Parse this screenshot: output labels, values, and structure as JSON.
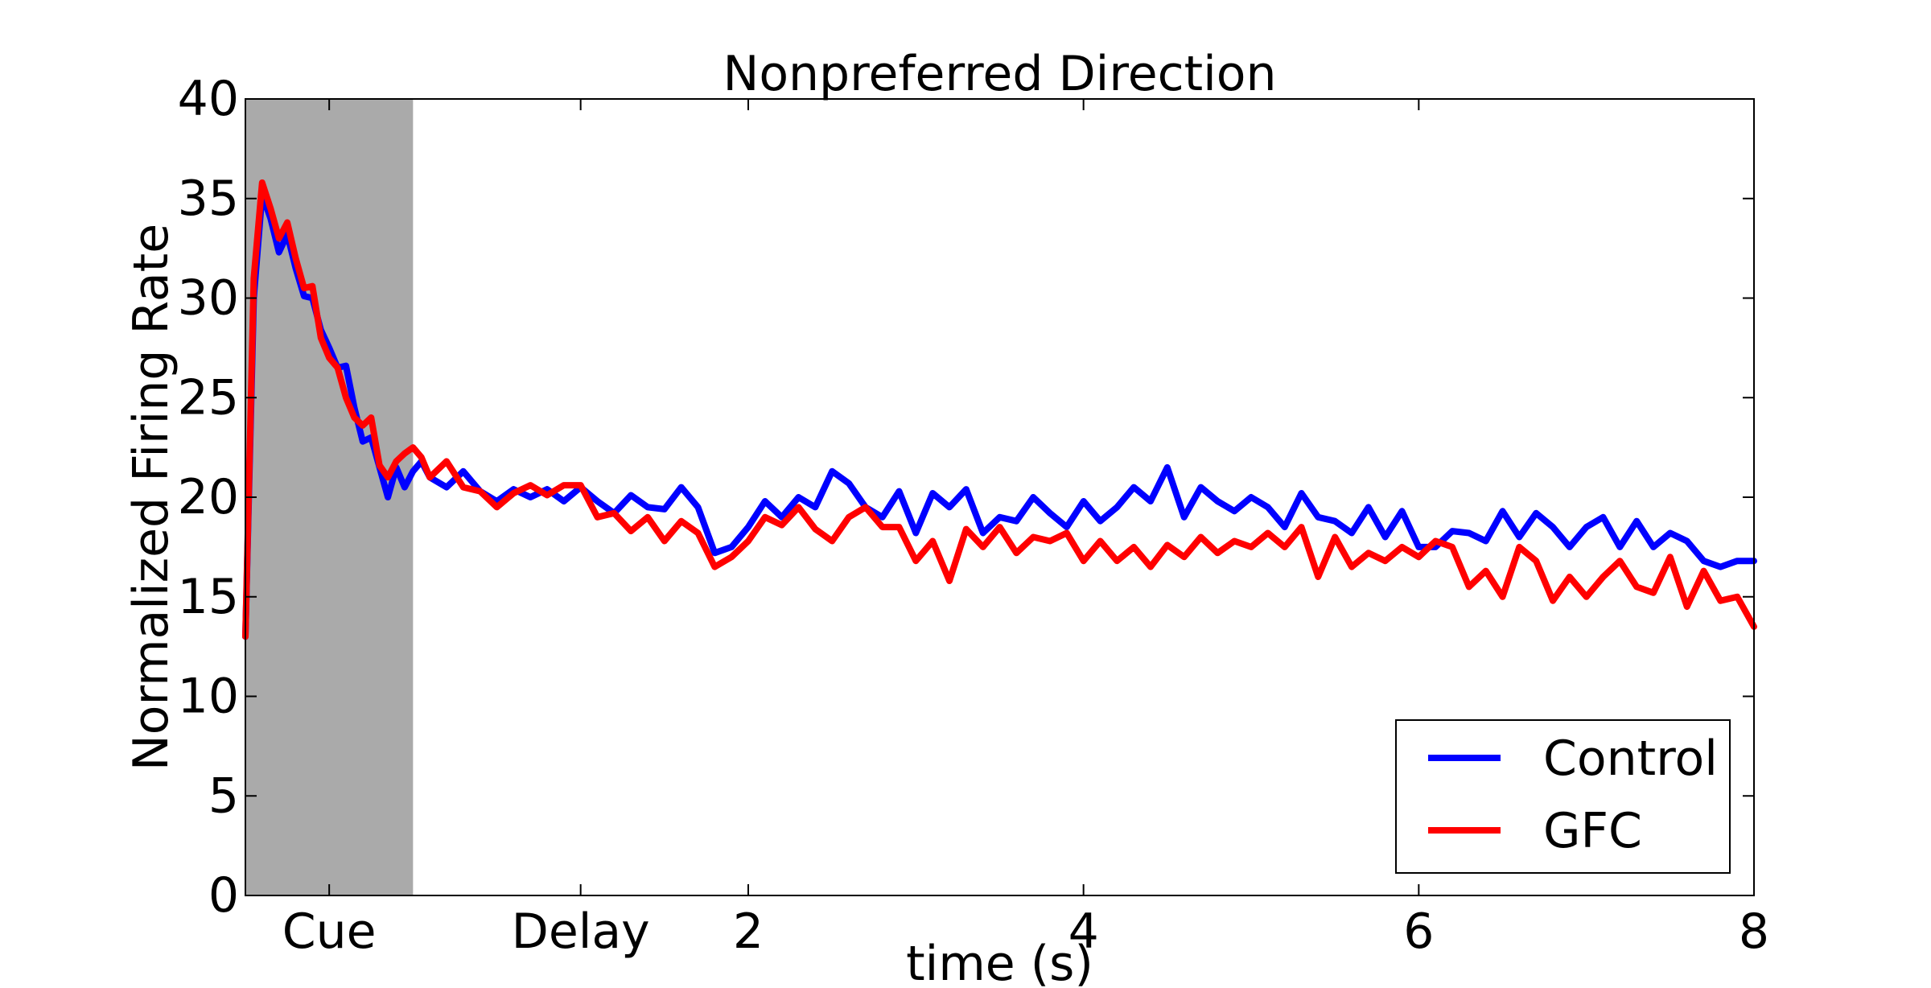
{
  "chart_data": {
    "type": "line",
    "title": "Nonpreferred Direction",
    "xlabel": "time (s)",
    "ylabel": "Normalized Firing Rate",
    "xlim": [
      -1,
      8
    ],
    "ylim": [
      0,
      40
    ],
    "yticks": [
      0,
      5,
      10,
      15,
      20,
      25,
      30,
      35,
      40
    ],
    "xticks": [
      {
        "value": -0.5,
        "label": "Cue"
      },
      {
        "value": 1.0,
        "label": "Delay"
      },
      {
        "value": 2,
        "label": "2"
      },
      {
        "value": 4,
        "label": "4"
      },
      {
        "value": 6,
        "label": "6"
      },
      {
        "value": 8,
        "label": "8"
      }
    ],
    "grid": false,
    "shaded_region": {
      "x": [
        -1,
        0
      ],
      "color": "#aaaaaa"
    },
    "legend": {
      "position": "bottom-right"
    },
    "series": [
      {
        "name": "Control",
        "color": "#0000ff",
        "x": [
          -1.0,
          -0.95,
          -0.9,
          -0.85,
          -0.8,
          -0.75,
          -0.7,
          -0.65,
          -0.6,
          -0.55,
          -0.5,
          -0.45,
          -0.4,
          -0.35,
          -0.3,
          -0.25,
          -0.2,
          -0.15,
          -0.1,
          -0.05,
          0.0,
          0.05,
          0.1,
          0.2,
          0.3,
          0.4,
          0.5,
          0.6,
          0.7,
          0.8,
          0.9,
          1.0,
          1.1,
          1.2,
          1.3,
          1.4,
          1.5,
          1.6,
          1.7,
          1.8,
          1.9,
          2.0,
          2.1,
          2.2,
          2.3,
          2.4,
          2.5,
          2.6,
          2.7,
          2.8,
          2.9,
          3.0,
          3.1,
          3.2,
          3.3,
          3.4,
          3.5,
          3.6,
          3.7,
          3.8,
          3.9,
          4.0,
          4.1,
          4.2,
          4.3,
          4.4,
          4.5,
          4.6,
          4.7,
          4.8,
          4.9,
          5.0,
          5.1,
          5.2,
          5.3,
          5.4,
          5.5,
          5.6,
          5.7,
          5.8,
          5.9,
          6.0,
          6.1,
          6.2,
          6.3,
          6.4,
          6.5,
          6.6,
          6.7,
          6.8,
          6.9,
          7.0,
          7.1,
          7.2,
          7.3,
          7.4,
          7.5,
          7.6,
          7.7,
          7.8,
          7.9,
          8.0
        ],
        "y": [
          13.0,
          30.0,
          35.2,
          34.0,
          32.3,
          33.2,
          31.5,
          30.1,
          30.0,
          28.4,
          27.5,
          26.5,
          26.6,
          24.5,
          22.8,
          23.0,
          21.5,
          20.0,
          21.5,
          20.5,
          21.3,
          21.8,
          21.0,
          20.5,
          21.3,
          20.3,
          19.8,
          20.4,
          20.0,
          20.4,
          19.8,
          20.5,
          19.8,
          19.2,
          20.1,
          19.5,
          19.4,
          20.5,
          19.5,
          17.2,
          17.5,
          18.5,
          19.8,
          19.0,
          20.0,
          19.5,
          21.3,
          20.7,
          19.5,
          19.0,
          20.3,
          18.2,
          20.2,
          19.5,
          20.4,
          18.2,
          19.0,
          18.8,
          20.0,
          19.2,
          18.5,
          19.8,
          18.8,
          19.5,
          20.5,
          19.8,
          21.5,
          19.0,
          20.5,
          19.8,
          19.3,
          20.0,
          19.5,
          18.5,
          20.2,
          19.0,
          18.8,
          18.2,
          19.5,
          18.0,
          19.3,
          17.5,
          17.5,
          18.3,
          18.2,
          17.8,
          19.3,
          18.0,
          19.2,
          18.5,
          17.5,
          18.5,
          19.0,
          17.5,
          18.8,
          17.5,
          18.2,
          17.8,
          16.8,
          16.5,
          16.8,
          16.8
        ]
      },
      {
        "name": "GFC",
        "color": "#ff0000",
        "x": [
          -1.0,
          -0.95,
          -0.9,
          -0.85,
          -0.8,
          -0.75,
          -0.7,
          -0.65,
          -0.6,
          -0.55,
          -0.5,
          -0.45,
          -0.4,
          -0.35,
          -0.3,
          -0.25,
          -0.2,
          -0.15,
          -0.1,
          -0.05,
          0.0,
          0.05,
          0.1,
          0.2,
          0.3,
          0.4,
          0.5,
          0.6,
          0.7,
          0.8,
          0.9,
          1.0,
          1.1,
          1.2,
          1.3,
          1.4,
          1.5,
          1.6,
          1.7,
          1.8,
          1.9,
          2.0,
          2.1,
          2.2,
          2.3,
          2.4,
          2.5,
          2.6,
          2.7,
          2.8,
          2.9,
          3.0,
          3.1,
          3.2,
          3.3,
          3.4,
          3.5,
          3.6,
          3.7,
          3.8,
          3.9,
          4.0,
          4.1,
          4.2,
          4.3,
          4.4,
          4.5,
          4.6,
          4.7,
          4.8,
          4.9,
          5.0,
          5.1,
          5.2,
          5.3,
          5.4,
          5.5,
          5.6,
          5.7,
          5.8,
          5.9,
          6.0,
          6.1,
          6.2,
          6.3,
          6.4,
          6.5,
          6.6,
          6.7,
          6.8,
          6.9,
          7.0,
          7.1,
          7.2,
          7.3,
          7.4,
          7.5,
          7.6,
          7.7,
          7.8,
          7.9,
          8.0
        ],
        "y": [
          13.0,
          31.0,
          35.8,
          34.5,
          33.0,
          33.8,
          32.0,
          30.5,
          30.6,
          28.0,
          27.0,
          26.5,
          25.0,
          24.0,
          23.6,
          24.0,
          21.6,
          21.0,
          21.8,
          22.2,
          22.5,
          22.0,
          21.0,
          21.8,
          20.5,
          20.3,
          19.5,
          20.2,
          20.6,
          20.1,
          20.6,
          20.6,
          19.0,
          19.2,
          18.3,
          19.0,
          17.8,
          18.8,
          18.2,
          16.5,
          17.0,
          17.8,
          19.0,
          18.6,
          19.5,
          18.4,
          17.8,
          19.0,
          19.5,
          18.5,
          18.5,
          16.8,
          17.8,
          15.8,
          18.4,
          17.5,
          18.5,
          17.2,
          18.0,
          17.8,
          18.2,
          16.8,
          17.8,
          16.8,
          17.5,
          16.5,
          17.6,
          17.0,
          18.0,
          17.2,
          17.8,
          17.5,
          18.2,
          17.5,
          18.5,
          16.0,
          18.0,
          16.5,
          17.2,
          16.8,
          17.5,
          17.0,
          17.8,
          17.5,
          15.5,
          16.3,
          15.0,
          17.5,
          16.8,
          14.8,
          16.0,
          15.0,
          16.0,
          16.8,
          15.5,
          15.2,
          17.0,
          14.5,
          16.3,
          14.8,
          15.0,
          13.5
        ]
      }
    ]
  }
}
